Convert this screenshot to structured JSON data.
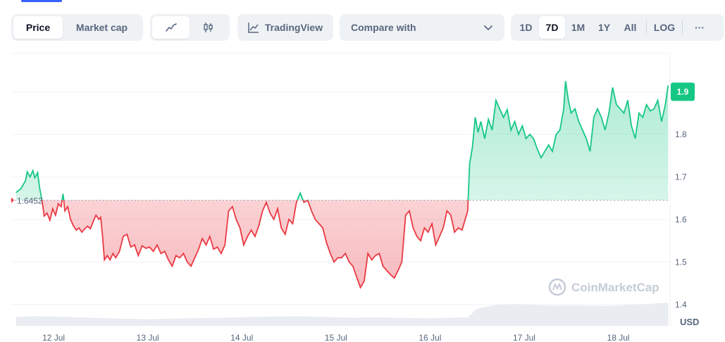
{
  "toolbar": {
    "type_tabs": [
      {
        "label": "Price",
        "active": true
      },
      {
        "label": "Market cap",
        "active": false
      }
    ],
    "style_icons": [
      "line-chart-icon",
      "candlestick-icon"
    ],
    "tradingview_label": "TradingView",
    "compare_label": "Compare with",
    "ranges": [
      {
        "label": "1D",
        "active": false
      },
      {
        "label": "7D",
        "active": true
      },
      {
        "label": "1M",
        "active": false
      },
      {
        "label": "1Y",
        "active": false
      },
      {
        "label": "All",
        "active": false
      }
    ],
    "log_label": "LOG",
    "more_label": "···"
  },
  "colors": {
    "up": "#16c784",
    "down": "#ea3943",
    "accent": "#3861fb",
    "badge": "#16c784"
  },
  "chart_data": {
    "type": "area",
    "currency_label": "USD",
    "watermark": "CoinMarketCap",
    "reference_value": 1.6452,
    "reference_label": "1.6452",
    "current_label": "1.9",
    "current_value": 1.9,
    "ylim": [
      1.35,
      1.99
    ],
    "y_ticks": [
      {
        "value": 1.8,
        "label": "1.8"
      },
      {
        "value": 1.7,
        "label": "1.7"
      },
      {
        "value": 1.6,
        "label": "1.6"
      },
      {
        "value": 1.5,
        "label": "1.5"
      },
      {
        "value": 1.4,
        "label": "1.4"
      }
    ],
    "x_ticks": [
      "12 Jul",
      "13 Jul",
      "14 Jul",
      "15 Jul",
      "16 Jul",
      "17 Jul",
      "18 Jul"
    ],
    "xlim": [
      11.55,
      18.55
    ],
    "series": [
      {
        "values": [
          [
            11.6,
            1.663
          ],
          [
            11.65,
            1.672
          ],
          [
            11.7,
            1.69
          ],
          [
            11.72,
            1.712
          ],
          [
            11.75,
            1.7
          ],
          [
            11.78,
            1.715
          ],
          [
            11.8,
            1.698
          ],
          [
            11.83,
            1.71
          ],
          [
            11.85,
            1.675
          ],
          [
            11.88,
            1.64
          ],
          [
            11.9,
            1.608
          ],
          [
            11.93,
            1.615
          ],
          [
            11.96,
            1.598
          ],
          [
            11.99,
            1.625
          ],
          [
            12.02,
            1.61
          ],
          [
            12.05,
            1.637
          ],
          [
            12.08,
            1.63
          ],
          [
            12.1,
            1.66
          ],
          [
            12.12,
            1.62
          ],
          [
            12.15,
            1.63
          ],
          [
            12.18,
            1.6
          ],
          [
            12.21,
            1.585
          ],
          [
            12.24,
            1.575
          ],
          [
            12.27,
            1.58
          ],
          [
            12.3,
            1.57
          ],
          [
            12.33,
            1.578
          ],
          [
            12.36,
            1.584
          ],
          [
            12.39,
            1.578
          ],
          [
            12.42,
            1.595
          ],
          [
            12.45,
            1.61
          ],
          [
            12.48,
            1.6
          ],
          [
            12.5,
            1.605
          ],
          [
            12.52,
            1.56
          ],
          [
            12.54,
            1.505
          ],
          [
            12.57,
            1.515
          ],
          [
            12.6,
            1.505
          ],
          [
            12.63,
            1.52
          ],
          [
            12.66,
            1.51
          ],
          [
            12.7,
            1.525
          ],
          [
            12.74,
            1.56
          ],
          [
            12.78,
            1.565
          ],
          [
            12.82,
            1.535
          ],
          [
            12.86,
            1.54
          ],
          [
            12.9,
            1.515
          ],
          [
            12.94,
            1.538
          ],
          [
            12.98,
            1.532
          ],
          [
            13.02,
            1.535
          ],
          [
            13.06,
            1.525
          ],
          [
            13.1,
            1.54
          ],
          [
            13.14,
            1.52
          ],
          [
            13.18,
            1.525
          ],
          [
            13.22,
            1.505
          ],
          [
            13.26,
            1.49
          ],
          [
            13.3,
            1.515
          ],
          [
            13.34,
            1.51
          ],
          [
            13.38,
            1.52
          ],
          [
            13.42,
            1.5
          ],
          [
            13.46,
            1.49
          ],
          [
            13.5,
            1.51
          ],
          [
            13.54,
            1.53
          ],
          [
            13.58,
            1.555
          ],
          [
            13.62,
            1.54
          ],
          [
            13.66,
            1.56
          ],
          [
            13.7,
            1.53
          ],
          [
            13.74,
            1.535
          ],
          [
            13.78,
            1.52
          ],
          [
            13.82,
            1.54
          ],
          [
            13.86,
            1.62
          ],
          [
            13.9,
            1.63
          ],
          [
            13.94,
            1.6
          ],
          [
            13.98,
            1.58
          ],
          [
            14.02,
            1.54
          ],
          [
            14.06,
            1.56
          ],
          [
            14.1,
            1.575
          ],
          [
            14.14,
            1.56
          ],
          [
            14.18,
            1.585
          ],
          [
            14.22,
            1.62
          ],
          [
            14.26,
            1.64
          ],
          [
            14.3,
            1.615
          ],
          [
            14.34,
            1.6
          ],
          [
            14.38,
            1.625
          ],
          [
            14.42,
            1.58
          ],
          [
            14.46,
            1.565
          ],
          [
            14.5,
            1.6
          ],
          [
            14.54,
            1.59
          ],
          [
            14.58,
            1.64
          ],
          [
            14.62,
            1.662
          ],
          [
            14.66,
            1.64
          ],
          [
            14.7,
            1.645
          ],
          [
            14.74,
            1.62
          ],
          [
            14.78,
            1.6
          ],
          [
            14.82,
            1.59
          ],
          [
            14.86,
            1.58
          ],
          [
            14.9,
            1.545
          ],
          [
            14.94,
            1.52
          ],
          [
            14.98,
            1.5
          ],
          [
            15.02,
            1.51
          ],
          [
            15.06,
            1.51
          ],
          [
            15.1,
            1.52
          ],
          [
            15.14,
            1.5
          ],
          [
            15.18,
            1.49
          ],
          [
            15.22,
            1.465
          ],
          [
            15.26,
            1.44
          ],
          [
            15.3,
            1.455
          ],
          [
            15.34,
            1.52
          ],
          [
            15.38,
            1.505
          ],
          [
            15.42,
            1.515
          ],
          [
            15.46,
            1.52
          ],
          [
            15.5,
            1.49
          ],
          [
            15.54,
            1.48
          ],
          [
            15.58,
            1.47
          ],
          [
            15.62,
            1.462
          ],
          [
            15.66,
            1.48
          ],
          [
            15.7,
            1.5
          ],
          [
            15.74,
            1.61
          ],
          [
            15.78,
            1.62
          ],
          [
            15.82,
            1.58
          ],
          [
            15.86,
            1.56
          ],
          [
            15.9,
            1.55
          ],
          [
            15.94,
            1.58
          ],
          [
            15.98,
            1.57
          ],
          [
            16.02,
            1.59
          ],
          [
            16.06,
            1.54
          ],
          [
            16.1,
            1.56
          ],
          [
            16.14,
            1.58
          ],
          [
            16.18,
            1.62
          ],
          [
            16.22,
            1.61
          ],
          [
            16.26,
            1.57
          ],
          [
            16.3,
            1.58
          ],
          [
            16.34,
            1.575
          ],
          [
            16.38,
            1.605
          ],
          [
            16.4,
            1.62
          ],
          [
            16.42,
            1.73
          ],
          [
            16.45,
            1.77
          ],
          [
            16.48,
            1.84
          ],
          [
            16.51,
            1.805
          ],
          [
            16.54,
            1.83
          ],
          [
            16.58,
            1.79
          ],
          [
            16.62,
            1.835
          ],
          [
            16.66,
            1.81
          ],
          [
            16.7,
            1.88
          ],
          [
            16.74,
            1.86
          ],
          [
            16.78,
            1.84
          ],
          [
            16.82,
            1.858
          ],
          [
            16.86,
            1.81
          ],
          [
            16.9,
            1.83
          ],
          [
            16.94,
            1.8
          ],
          [
            16.98,
            1.82
          ],
          [
            17.02,
            1.79
          ],
          [
            17.06,
            1.8
          ],
          [
            17.1,
            1.79
          ],
          [
            17.14,
            1.765
          ],
          [
            17.18,
            1.745
          ],
          [
            17.22,
            1.76
          ],
          [
            17.26,
            1.775
          ],
          [
            17.3,
            1.76
          ],
          [
            17.34,
            1.8
          ],
          [
            17.38,
            1.81
          ],
          [
            17.42,
            1.86
          ],
          [
            17.44,
            1.925
          ],
          [
            17.47,
            1.88
          ],
          [
            17.5,
            1.85
          ],
          [
            17.54,
            1.86
          ],
          [
            17.58,
            1.83
          ],
          [
            17.62,
            1.81
          ],
          [
            17.66,
            1.79
          ],
          [
            17.7,
            1.76
          ],
          [
            17.74,
            1.84
          ],
          [
            17.78,
            1.86
          ],
          [
            17.82,
            1.84
          ],
          [
            17.86,
            1.81
          ],
          [
            17.9,
            1.85
          ],
          [
            17.94,
            1.91
          ],
          [
            17.98,
            1.87
          ],
          [
            18.02,
            1.86
          ],
          [
            18.06,
            1.85
          ],
          [
            18.1,
            1.88
          ],
          [
            18.14,
            1.82
          ],
          [
            18.18,
            1.79
          ],
          [
            18.22,
            1.85
          ],
          [
            18.26,
            1.84
          ],
          [
            18.3,
            1.87
          ],
          [
            18.34,
            1.855
          ],
          [
            18.38,
            1.86
          ],
          [
            18.42,
            1.88
          ],
          [
            18.46,
            1.83
          ],
          [
            18.5,
            1.87
          ],
          [
            18.53,
            1.915
          ]
        ]
      }
    ],
    "volume": [
      [
        11.6,
        0.55
      ],
      [
        11.8,
        0.62
      ],
      [
        12.0,
        0.6
      ],
      [
        12.2,
        0.55
      ],
      [
        12.4,
        0.52
      ],
      [
        12.6,
        0.48
      ],
      [
        12.8,
        0.45
      ],
      [
        13.0,
        0.42
      ],
      [
        13.2,
        0.45
      ],
      [
        13.4,
        0.48
      ],
      [
        13.6,
        0.5
      ],
      [
        13.8,
        0.52
      ],
      [
        14.0,
        0.55
      ],
      [
        14.2,
        0.58
      ],
      [
        14.4,
        0.6
      ],
      [
        14.6,
        0.62
      ],
      [
        14.8,
        0.58
      ],
      [
        15.0,
        0.55
      ],
      [
        15.2,
        0.52
      ],
      [
        15.4,
        0.55
      ],
      [
        15.6,
        0.52
      ],
      [
        15.8,
        0.5
      ],
      [
        16.0,
        0.48
      ],
      [
        16.2,
        0.52
      ],
      [
        16.4,
        0.55
      ],
      [
        16.5,
        1.1
      ],
      [
        16.7,
        1.35
      ],
      [
        16.9,
        1.4
      ],
      [
        17.1,
        1.35
      ],
      [
        17.3,
        1.3
      ],
      [
        17.5,
        1.32
      ],
      [
        17.7,
        1.3
      ],
      [
        17.9,
        1.28
      ],
      [
        18.1,
        1.35
      ],
      [
        18.3,
        1.4
      ],
      [
        18.53,
        1.5
      ]
    ]
  }
}
